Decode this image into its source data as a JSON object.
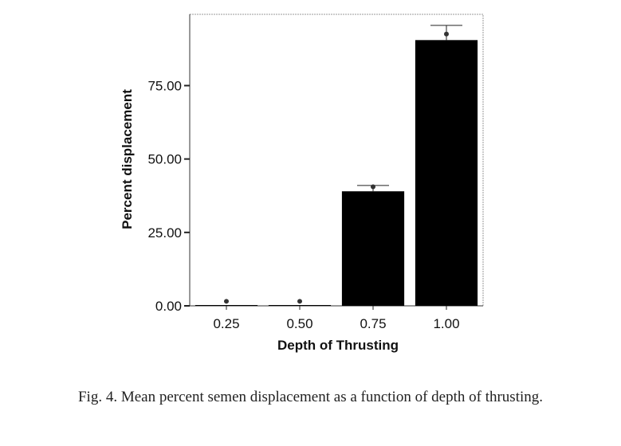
{
  "chart_data": {
    "type": "bar",
    "categories": [
      "0.25",
      "0.50",
      "0.75",
      "1.00"
    ],
    "values": [
      0,
      0,
      39,
      90.5
    ],
    "error_upper": [
      0.5,
      0.5,
      41,
      95.5
    ],
    "point_markers": [
      1,
      1,
      40,
      92
    ],
    "xlabel": "Depth of Thrusting",
    "ylabel": "Percent displacement",
    "yticks": [
      "0.00",
      "25.00",
      "50.00",
      "75.00"
    ],
    "ylim": [
      0,
      98
    ],
    "bar_color": "#000000",
    "grid": false
  },
  "caption": "Fig. 4. Mean percent semen displacement as a function of depth of thrusting."
}
